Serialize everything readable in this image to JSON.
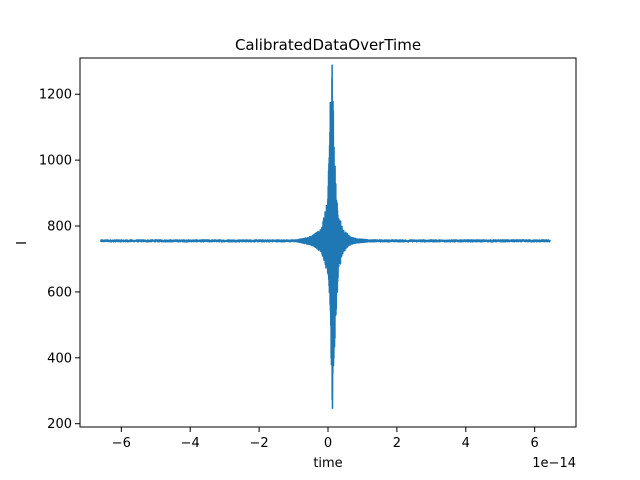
{
  "chart_data": {
    "type": "line",
    "title": "CalibratedDataOverTime",
    "xlabel": "time",
    "ylabel": "I",
    "x_offset_text": "1e−14",
    "x_scale_exponent": -14,
    "xlim": [
      -7.2,
      7.2
    ],
    "ylim": [
      190,
      1310
    ],
    "x_ticks": [
      -6,
      -4,
      -2,
      0,
      2,
      4,
      6
    ],
    "x_tick_labels": [
      "−6",
      "−4",
      "−2",
      "0",
      "2",
      "4",
      "6"
    ],
    "y_ticks": [
      200,
      400,
      600,
      800,
      1000,
      1200
    ],
    "y_tick_labels": [
      "200",
      "400",
      "600",
      "800",
      "1000",
      "1200"
    ],
    "grid": false,
    "series": [
      {
        "color": "#1f77b4",
        "x_range": [
          -6.6,
          6.45
        ],
        "baseline": 755,
        "baseline_noise": 3,
        "burst_center": 0.12,
        "envelope_samples": [
          {
            "x": -0.9,
            "upper": 758,
            "lower": 752
          },
          {
            "x": -0.6,
            "upper": 765,
            "lower": 745
          },
          {
            "x": -0.4,
            "upper": 775,
            "lower": 738
          },
          {
            "x": -0.2,
            "upper": 790,
            "lower": 720
          },
          {
            "x": -0.1,
            "upper": 840,
            "lower": 690
          },
          {
            "x": 0.0,
            "upper": 900,
            "lower": 640
          },
          {
            "x": 0.05,
            "upper": 1160,
            "lower": 580
          },
          {
            "x": 0.12,
            "upper": 1290,
            "lower": 245
          },
          {
            "x": 0.2,
            "upper": 1000,
            "lower": 450
          },
          {
            "x": 0.3,
            "upper": 840,
            "lower": 660
          },
          {
            "x": 0.45,
            "upper": 790,
            "lower": 720
          },
          {
            "x": 0.6,
            "upper": 772,
            "lower": 740
          },
          {
            "x": 0.8,
            "upper": 762,
            "lower": 748
          },
          {
            "x": 1.2,
            "upper": 758,
            "lower": 752
          }
        ]
      }
    ]
  }
}
